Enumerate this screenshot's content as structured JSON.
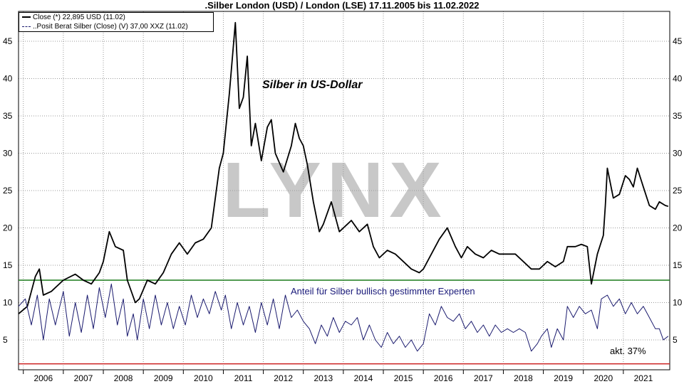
{
  "title": ".Silber London (USD) / London (LSE) 17.11.2005 bis 11.02.2022",
  "legend": [
    {
      "label": "Close (*) 22,895 USD (11.02)",
      "color": "#000000"
    },
    {
      "label": "..Posit Berat Silber (Close) (V) 37,00 XXZ (11.02)",
      "color": "#1a1a6e"
    }
  ],
  "annotations": {
    "silber": "Silber in US-Dollar",
    "anteil": "Anteil für Silber bullisch gestimmter Experten",
    "akt": "akt. 37%",
    "watermark": "LYNX"
  },
  "colors": {
    "price": "#000000",
    "sentiment": "#1a1a6e",
    "green_line": "#1a7a1a",
    "red_line": "#cc2222"
  },
  "chart_data": {
    "type": "line",
    "title": ".Silber London (USD) / London (LSE) 17.11.2005 bis 11.02.2022",
    "x_axis": {
      "tick_labels": [
        "2006",
        "2007",
        "2008",
        "2009",
        "2010",
        "2011",
        "2012",
        "2013",
        "2014",
        "2015",
        "2016",
        "2017",
        "2018",
        "2019",
        "2020",
        "2021"
      ]
    },
    "y_axis": {
      "tick_labels": [
        "5",
        "10",
        "15",
        "20",
        "25",
        "30",
        "35",
        "40",
        "45"
      ],
      "range": [
        1,
        49
      ],
      "grid": true
    },
    "reference_lines": [
      {
        "y": 13,
        "color": "green"
      },
      {
        "y": 1.8,
        "color": "red"
      }
    ],
    "series": [
      {
        "name": "Close (*) 22,895 USD (11.02)",
        "points": [
          [
            2005.88,
            8.5
          ],
          [
            2006.1,
            9.5
          ],
          [
            2006.3,
            13.5
          ],
          [
            2006.4,
            14.5
          ],
          [
            2006.5,
            11.0
          ],
          [
            2006.7,
            11.5
          ],
          [
            2007.0,
            13.0
          ],
          [
            2007.3,
            13.8
          ],
          [
            2007.5,
            13.0
          ],
          [
            2007.7,
            12.5
          ],
          [
            2007.9,
            14.0
          ],
          [
            2008.0,
            15.5
          ],
          [
            2008.15,
            19.5
          ],
          [
            2008.3,
            17.5
          ],
          [
            2008.5,
            17.0
          ],
          [
            2008.6,
            13.0
          ],
          [
            2008.8,
            10.0
          ],
          [
            2008.9,
            10.5
          ],
          [
            2009.1,
            13.0
          ],
          [
            2009.3,
            12.5
          ],
          [
            2009.5,
            14.0
          ],
          [
            2009.7,
            16.5
          ],
          [
            2009.9,
            18.0
          ],
          [
            2010.1,
            16.5
          ],
          [
            2010.3,
            18.0
          ],
          [
            2010.5,
            18.5
          ],
          [
            2010.7,
            20.0
          ],
          [
            2010.8,
            24.0
          ],
          [
            2010.9,
            28.0
          ],
          [
            2011.0,
            30.0
          ],
          [
            2011.15,
            38.0
          ],
          [
            2011.3,
            47.5
          ],
          [
            2011.4,
            36.0
          ],
          [
            2011.5,
            37.5
          ],
          [
            2011.6,
            43.0
          ],
          [
            2011.7,
            31.0
          ],
          [
            2011.8,
            34.0
          ],
          [
            2011.95,
            29.0
          ],
          [
            2012.1,
            33.5
          ],
          [
            2012.2,
            34.5
          ],
          [
            2012.3,
            30.0
          ],
          [
            2012.5,
            27.5
          ],
          [
            2012.7,
            31.0
          ],
          [
            2012.8,
            34.0
          ],
          [
            2012.9,
            32.0
          ],
          [
            2013.0,
            31.0
          ],
          [
            2013.1,
            28.5
          ],
          [
            2013.25,
            23.5
          ],
          [
            2013.4,
            19.5
          ],
          [
            2013.5,
            20.5
          ],
          [
            2013.7,
            23.5
          ],
          [
            2013.9,
            19.5
          ],
          [
            2014.1,
            20.5
          ],
          [
            2014.2,
            21.0
          ],
          [
            2014.4,
            19.5
          ],
          [
            2014.6,
            20.5
          ],
          [
            2014.75,
            17.5
          ],
          [
            2014.9,
            16.0
          ],
          [
            2015.1,
            17.0
          ],
          [
            2015.3,
            16.5
          ],
          [
            2015.5,
            15.5
          ],
          [
            2015.7,
            14.5
          ],
          [
            2015.9,
            14.0
          ],
          [
            2016.0,
            14.5
          ],
          [
            2016.2,
            16.5
          ],
          [
            2016.4,
            18.5
          ],
          [
            2016.6,
            20.0
          ],
          [
            2016.8,
            17.5
          ],
          [
            2016.95,
            16.0
          ],
          [
            2017.1,
            17.5
          ],
          [
            2017.3,
            16.5
          ],
          [
            2017.5,
            16.0
          ],
          [
            2017.7,
            17.0
          ],
          [
            2017.9,
            16.5
          ],
          [
            2018.1,
            16.5
          ],
          [
            2018.3,
            16.5
          ],
          [
            2018.5,
            15.5
          ],
          [
            2018.7,
            14.5
          ],
          [
            2018.9,
            14.5
          ],
          [
            2019.1,
            15.5
          ],
          [
            2019.3,
            14.8
          ],
          [
            2019.5,
            15.5
          ],
          [
            2019.6,
            17.5
          ],
          [
            2019.8,
            17.5
          ],
          [
            2019.95,
            17.8
          ],
          [
            2020.1,
            17.5
          ],
          [
            2020.2,
            12.5
          ],
          [
            2020.35,
            16.5
          ],
          [
            2020.5,
            19.0
          ],
          [
            2020.55,
            23.0
          ],
          [
            2020.6,
            28.0
          ],
          [
            2020.75,
            24.0
          ],
          [
            2020.9,
            24.5
          ],
          [
            2021.05,
            27.0
          ],
          [
            2021.15,
            26.5
          ],
          [
            2021.25,
            25.5
          ],
          [
            2021.35,
            28.0
          ],
          [
            2021.5,
            25.5
          ],
          [
            2021.65,
            23.0
          ],
          [
            2021.8,
            22.5
          ],
          [
            2021.9,
            23.5
          ],
          [
            2022.05,
            23.0
          ],
          [
            2022.12,
            22.9
          ]
        ]
      },
      {
        "name": "..Posit Berat Silber (Close) (V) 37,00 XXZ (11.02)",
        "points": [
          [
            2005.88,
            9.5
          ],
          [
            2006.05,
            10.5
          ],
          [
            2006.2,
            7.0
          ],
          [
            2006.35,
            11.0
          ],
          [
            2006.5,
            5.0
          ],
          [
            2006.65,
            10.5
          ],
          [
            2006.8,
            7.0
          ],
          [
            2007.0,
            11.5
          ],
          [
            2007.15,
            5.5
          ],
          [
            2007.3,
            10.0
          ],
          [
            2007.45,
            6.0
          ],
          [
            2007.6,
            11.0
          ],
          [
            2007.75,
            6.5
          ],
          [
            2007.9,
            12.0
          ],
          [
            2008.05,
            8.0
          ],
          [
            2008.2,
            12.5
          ],
          [
            2008.35,
            7.0
          ],
          [
            2008.5,
            10.5
          ],
          [
            2008.6,
            5.5
          ],
          [
            2008.75,
            8.5
          ],
          [
            2008.85,
            5.0
          ],
          [
            2009.0,
            10.5
          ],
          [
            2009.15,
            6.5
          ],
          [
            2009.3,
            11.0
          ],
          [
            2009.45,
            7.0
          ],
          [
            2009.6,
            10.0
          ],
          [
            2009.75,
            6.5
          ],
          [
            2009.9,
            9.5
          ],
          [
            2010.05,
            7.0
          ],
          [
            2010.2,
            11.0
          ],
          [
            2010.35,
            8.0
          ],
          [
            2010.5,
            10.5
          ],
          [
            2010.65,
            8.5
          ],
          [
            2010.8,
            11.5
          ],
          [
            2010.95,
            9.0
          ],
          [
            2011.05,
            11.0
          ],
          [
            2011.2,
            6.5
          ],
          [
            2011.35,
            10.0
          ],
          [
            2011.5,
            7.0
          ],
          [
            2011.65,
            9.5
          ],
          [
            2011.8,
            6.0
          ],
          [
            2011.95,
            10.0
          ],
          [
            2012.1,
            7.0
          ],
          [
            2012.25,
            10.5
          ],
          [
            2012.4,
            6.5
          ],
          [
            2012.55,
            11.0
          ],
          [
            2012.7,
            8.0
          ],
          [
            2012.85,
            9.0
          ],
          [
            2013.0,
            7.5
          ],
          [
            2013.15,
            6.5
          ],
          [
            2013.3,
            4.5
          ],
          [
            2013.45,
            7.0
          ],
          [
            2013.6,
            5.5
          ],
          [
            2013.75,
            8.0
          ],
          [
            2013.9,
            6.0
          ],
          [
            2014.05,
            7.5
          ],
          [
            2014.2,
            7.0
          ],
          [
            2014.35,
            8.0
          ],
          [
            2014.5,
            5.0
          ],
          [
            2014.65,
            7.0
          ],
          [
            2014.8,
            5.0
          ],
          [
            2014.95,
            4.0
          ],
          [
            2015.1,
            6.0
          ],
          [
            2015.25,
            4.5
          ],
          [
            2015.4,
            5.5
          ],
          [
            2015.55,
            4.0
          ],
          [
            2015.7,
            5.0
          ],
          [
            2015.85,
            3.5
          ],
          [
            2016.0,
            4.5
          ],
          [
            2016.15,
            8.5
          ],
          [
            2016.3,
            7.0
          ],
          [
            2016.45,
            9.5
          ],
          [
            2016.6,
            8.0
          ],
          [
            2016.75,
            7.5
          ],
          [
            2016.9,
            8.5
          ],
          [
            2017.05,
            6.5
          ],
          [
            2017.2,
            7.5
          ],
          [
            2017.35,
            6.0
          ],
          [
            2017.5,
            7.0
          ],
          [
            2017.65,
            5.5
          ],
          [
            2017.8,
            7.0
          ],
          [
            2017.95,
            6.0
          ],
          [
            2018.1,
            6.5
          ],
          [
            2018.25,
            6.0
          ],
          [
            2018.4,
            6.5
          ],
          [
            2018.55,
            6.0
          ],
          [
            2018.7,
            3.5
          ],
          [
            2018.85,
            4.5
          ],
          [
            2018.95,
            5.5
          ],
          [
            2019.1,
            6.5
          ],
          [
            2019.2,
            4.0
          ],
          [
            2019.35,
            6.5
          ],
          [
            2019.5,
            5.0
          ],
          [
            2019.6,
            9.5
          ],
          [
            2019.75,
            8.0
          ],
          [
            2019.9,
            9.5
          ],
          [
            2020.05,
            8.5
          ],
          [
            2020.2,
            9.0
          ],
          [
            2020.35,
            6.5
          ],
          [
            2020.45,
            10.5
          ],
          [
            2020.6,
            11.0
          ],
          [
            2020.75,
            9.5
          ],
          [
            2020.9,
            10.5
          ],
          [
            2021.05,
            8.5
          ],
          [
            2021.2,
            10.0
          ],
          [
            2021.35,
            8.5
          ],
          [
            2021.5,
            9.5
          ],
          [
            2021.65,
            8.0
          ],
          [
            2021.8,
            6.5
          ],
          [
            2021.9,
            6.5
          ],
          [
            2022.0,
            5.0
          ],
          [
            2022.12,
            5.5
          ]
        ]
      }
    ]
  }
}
